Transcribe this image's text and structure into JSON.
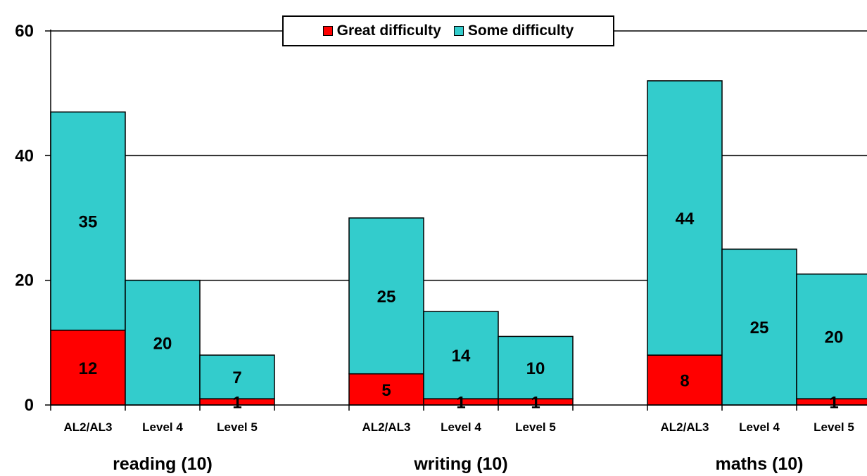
{
  "chart_data": {
    "type": "bar",
    "stacked": true,
    "groups": [
      "reading (10)",
      "writing (10)",
      "maths (10)"
    ],
    "categories": [
      "AL2/AL3",
      "Level 4",
      "Level 5"
    ],
    "series": [
      {
        "name": "Great difficulty",
        "color": "#ff0000",
        "values": [
          [
            12,
            0,
            1
          ],
          [
            5,
            1,
            1
          ],
          [
            8,
            0,
            1
          ]
        ],
        "labels": [
          [
            "12",
            "",
            "1"
          ],
          [
            "5",
            "1",
            "1"
          ],
          [
            "8",
            "",
            "1"
          ]
        ]
      },
      {
        "name": "Some difficulty",
        "color": "#33cccc",
        "values": [
          [
            35,
            20,
            7
          ],
          [
            25,
            14,
            10
          ],
          [
            44,
            25,
            20
          ]
        ],
        "labels": [
          [
            "35",
            "20",
            "7"
          ],
          [
            "25",
            "14",
            "10"
          ],
          [
            "44",
            "25",
            "20"
          ]
        ]
      }
    ],
    "ylim": [
      0,
      60
    ],
    "yticks": [
      "0",
      "20",
      "40",
      "60"
    ],
    "grid": true,
    "legend": "top-center"
  }
}
